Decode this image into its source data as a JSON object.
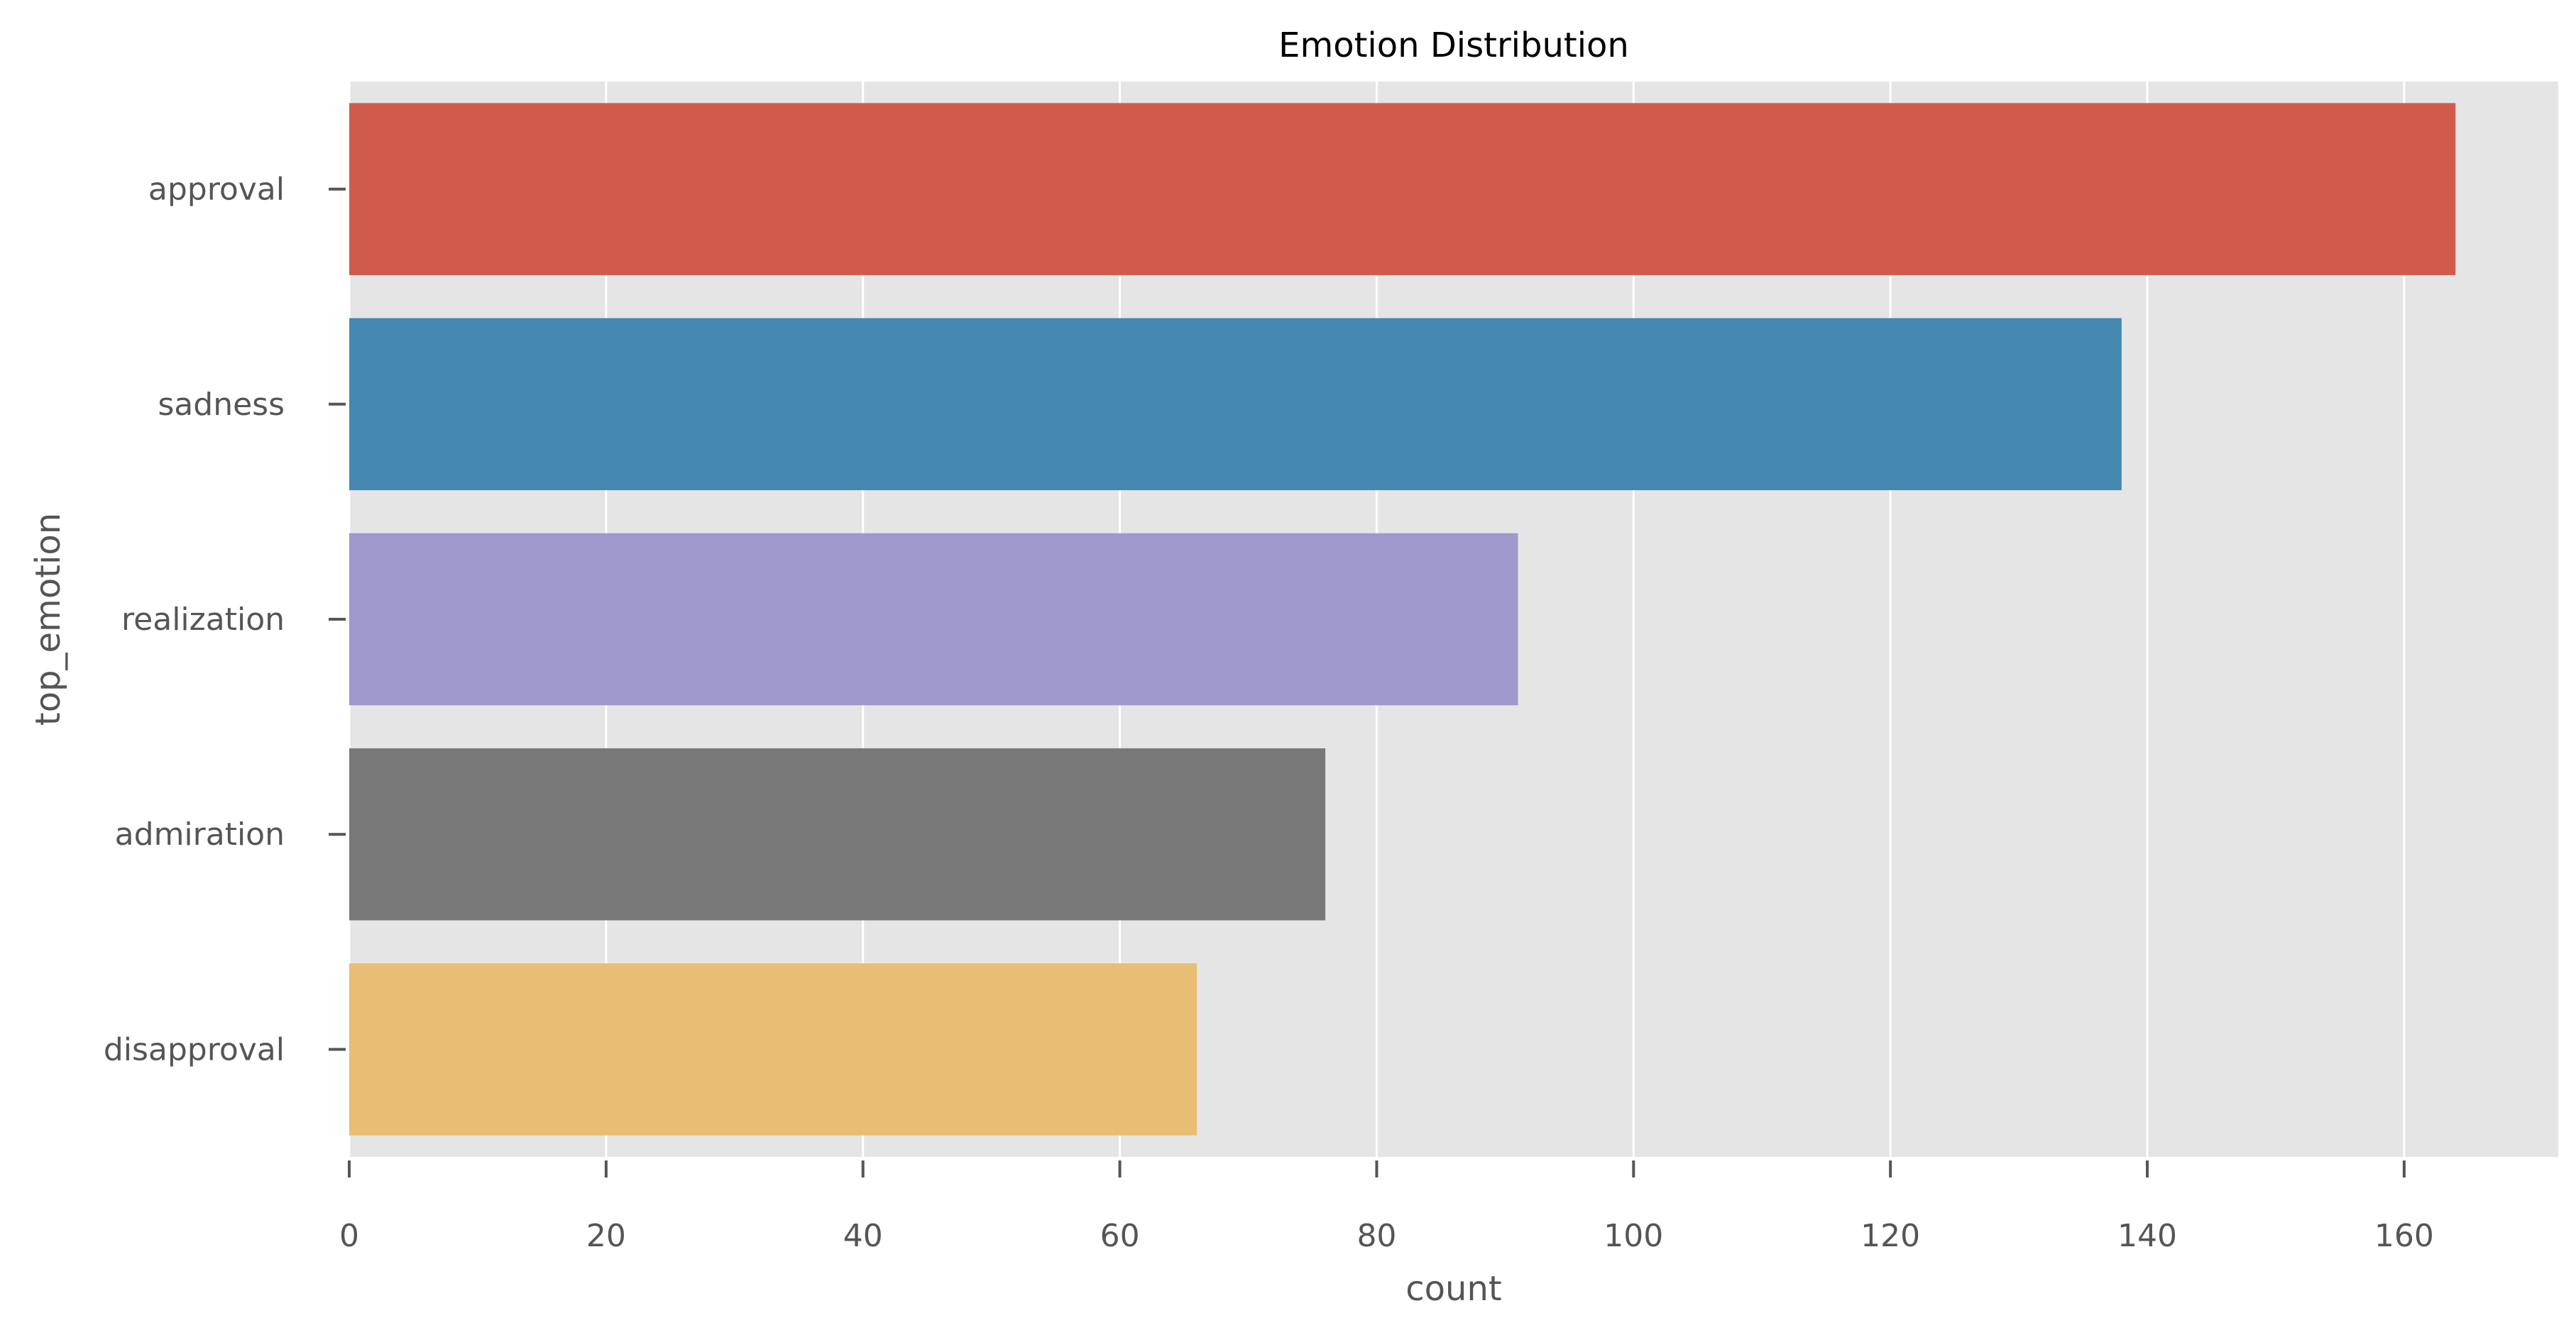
{
  "chart_data": {
    "type": "bar",
    "orientation": "horizontal",
    "title": "Emotion Distribution",
    "xlabel": "count",
    "ylabel": "top_emotion",
    "categories": [
      "approval",
      "sadness",
      "realization",
      "admiration",
      "disapproval"
    ],
    "values": [
      164,
      138,
      91,
      76,
      66
    ],
    "xlim": [
      0,
      172
    ],
    "xticks": [
      "0",
      "20",
      "40",
      "60",
      "80",
      "100",
      "120",
      "140",
      "160"
    ],
    "grid": true,
    "legend": "none",
    "colors": [
      "#d05b4a",
      "#4588af",
      "#9e98cc",
      "#787878",
      "#e8bd74"
    ],
    "background": "#e5e5e5",
    "gridline_color": "#ffffff"
  }
}
